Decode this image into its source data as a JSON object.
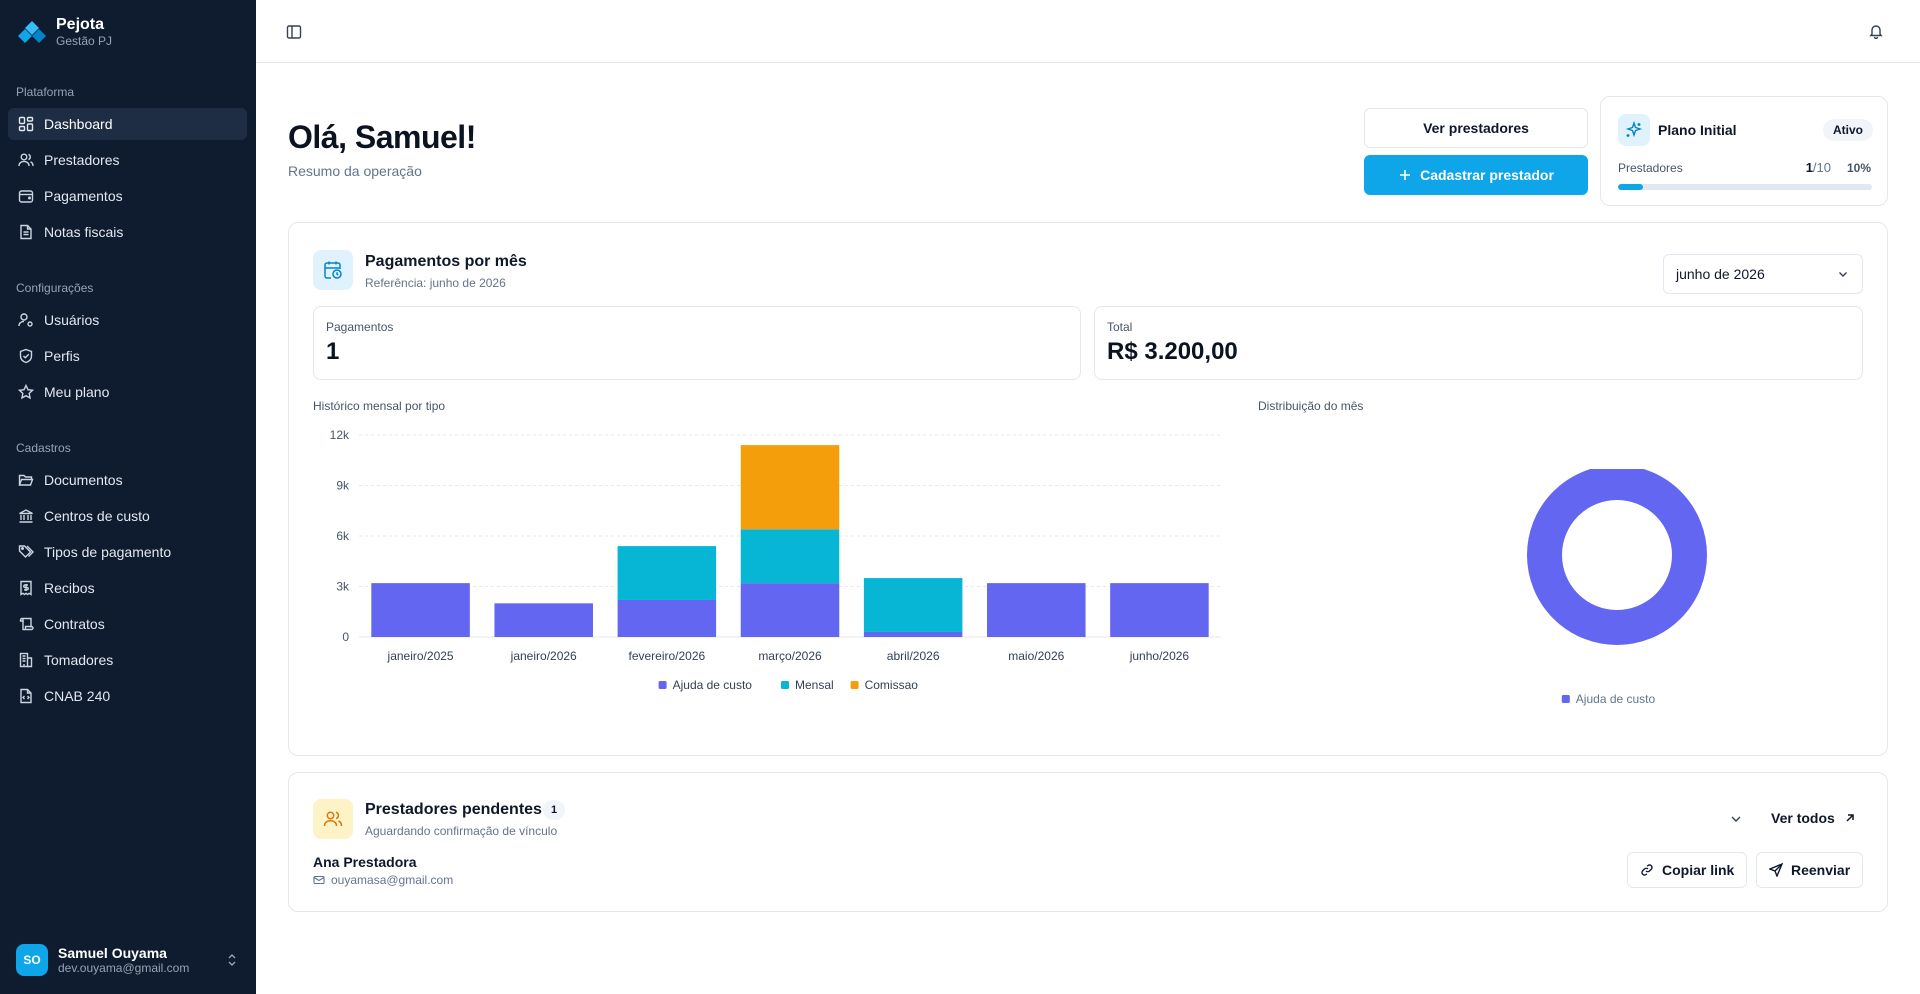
{
  "brand": {
    "name": "Pejota",
    "subtitle": "Gestão PJ"
  },
  "sidebar": {
    "groups": [
      {
        "label": "Plataforma",
        "items": [
          {
            "label": "Dashboard",
            "icon": "dashboard-icon",
            "active": true
          },
          {
            "label": "Prestadores",
            "icon": "users-icon"
          },
          {
            "label": "Pagamentos",
            "icon": "wallet-icon"
          },
          {
            "label": "Notas fiscais",
            "icon": "file-text-icon"
          }
        ]
      },
      {
        "label": "Configurações",
        "items": [
          {
            "label": "Usuários",
            "icon": "user-cog-icon"
          },
          {
            "label": "Perfis",
            "icon": "shield-icon"
          },
          {
            "label": "Meu plano",
            "icon": "star-icon"
          }
        ]
      },
      {
        "label": "Cadastros",
        "items": [
          {
            "label": "Documentos",
            "icon": "folder-open-icon"
          },
          {
            "label": "Centros de custo",
            "icon": "landmark-icon"
          },
          {
            "label": "Tipos de pagamento",
            "icon": "tags-icon"
          },
          {
            "label": "Recibos",
            "icon": "receipt-icon"
          },
          {
            "label": "Contratos",
            "icon": "scroll-icon"
          },
          {
            "label": "Tomadores",
            "icon": "building-icon"
          },
          {
            "label": "CNAB 240",
            "icon": "file-code-icon"
          }
        ]
      }
    ],
    "user": {
      "initials": "SO",
      "name": "Samuel Ouyama",
      "email": "dev.ouyama@gmail.com"
    }
  },
  "header": {
    "greeting": "Olá, Samuel!",
    "subtitle": "Resumo da operação",
    "ver_prestadores": "Ver prestadores",
    "cadastrar_prestador": "Cadastrar prestador"
  },
  "plan": {
    "title": "Plano Initial",
    "badge": "Ativo",
    "label": "Prestadores",
    "used": "1",
    "limit": "/10",
    "percent": "10%",
    "progress": 0.1
  },
  "payments": {
    "title": "Pagamentos por mês",
    "reference": "Referência: junho de 2026",
    "selected_month": "junho de 2026",
    "stat_count_label": "Pagamentos",
    "stat_count_value": "1",
    "stat_total_label": "Total",
    "stat_total_value": "R$ 3.200,00",
    "history_label": "Histórico mensal por tipo",
    "distribution_label": "Distribuição do mês",
    "donut_legend": "Ajuda de custo"
  },
  "colors": {
    "ajuda": "#6366f1",
    "mensal": "#06b6d4",
    "comissao": "#f59e0b",
    "accent": "#0ea5e9"
  },
  "chart_data": [
    {
      "type": "bar",
      "stacked": true,
      "title": "Histórico mensal por tipo",
      "categories": [
        "janeiro/2025",
        "janeiro/2026",
        "fevereiro/2026",
        "março/2026",
        "abril/2026",
        "maio/2026",
        "junho/2026"
      ],
      "series": [
        {
          "name": "Ajuda de custo",
          "color": "#6366f1",
          "values": [
            3200,
            2000,
            2200,
            3200,
            300,
            3200,
            3200
          ]
        },
        {
          "name": "Mensal",
          "color": "#06b6d4",
          "values": [
            0,
            0,
            3200,
            3200,
            3200,
            0,
            0
          ]
        },
        {
          "name": "Comissao",
          "color": "#f59e0b",
          "values": [
            0,
            0,
            0,
            5000,
            0,
            0,
            0
          ]
        }
      ],
      "yticks": [
        "0",
        "3k",
        "6k",
        "9k",
        "12k"
      ],
      "ylim": [
        0,
        12000
      ],
      "grid": true,
      "legend": "bottom"
    },
    {
      "type": "pie",
      "donut": true,
      "title": "Distribuição do mês",
      "slices": [
        {
          "name": "Ajuda de custo",
          "value": 3200,
          "color": "#6366f1"
        }
      ],
      "legend": "bottom"
    }
  ],
  "pending": {
    "title": "Prestadores pendentes",
    "count": "1",
    "subtitle": "Aguardando confirmação de vínculo",
    "ver_todos": "Ver todos",
    "items": [
      {
        "name": "Ana Prestadora",
        "email": "ouyamasa@gmail.com"
      }
    ],
    "copy_link": "Copiar link",
    "resend": "Reenviar"
  }
}
